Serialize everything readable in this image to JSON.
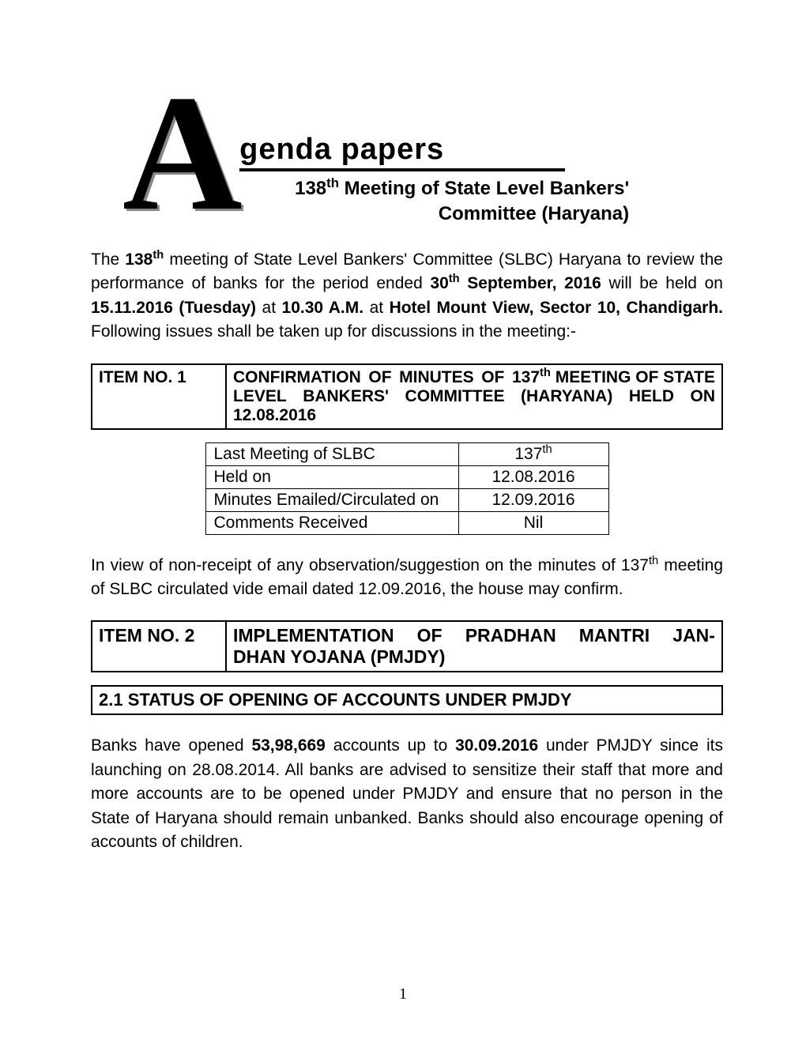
{
  "header": {
    "big_letter": "A",
    "genda": "genda papers",
    "subtitle_line1": "138",
    "subtitle_sup1": "th",
    "subtitle_line1b": " Meeting of State Level Bankers'",
    "subtitle_line2": "Committee (Haryana)"
  },
  "intro": {
    "p1a": "The ",
    "p1b": "138",
    "p1sup": "th",
    "p1c": " meeting of State Level Bankers' Committee (SLBC) Haryana to review the performance of banks for the period ended ",
    "p1d": "30",
    "p1sup2": "th",
    "p1e": " September, 2016",
    "p1f": " will be held on ",
    "p1g": "15.11.2016 (Tuesday)",
    "p1h": " at ",
    "p1i": "10.30 A.M.",
    "p1j": " at ",
    "p1k": "Hotel Mount View, Sector 10, Chandigarh.",
    "p1l": "  Following issues shall be taken up for discussions in the meeting:-"
  },
  "item1": {
    "label": "ITEM NO. 1",
    "desc_a": "CONFIRMATION OF MINUTES OF 137",
    "desc_sup": "th",
    "desc_b": " MEETING OF STATE LEVEL BANKERS' COMMITTEE (HARYANA) HELD ON 12.08.2016",
    "line1_words": [
      "CONFIRMATION",
      "OF",
      "MINUTES",
      "OF",
      "137"
    ],
    "line1_tail_sup": "th",
    "line1_tail": " MEETING OF STATE",
    "line2_words": [
      "LEVEL",
      "BANKERS'",
      "COMMITTEE",
      "(HARYANA)",
      "HELD",
      "ON"
    ],
    "line3": "12.08.2016"
  },
  "meta": {
    "rows": [
      {
        "k": "Last Meeting of SLBC",
        "v_a": "137",
        "v_sup": "th"
      },
      {
        "k": "Held on",
        "v": "12.08.2016"
      },
      {
        "k": "Minutes Emailed/Circulated on",
        "v": "12.09.2016"
      },
      {
        "k": "Comments Received",
        "v": "Nil"
      }
    ]
  },
  "confirm_para_a": "In view of non-receipt of any observation/suggestion on the minutes of 137",
  "confirm_para_sup": "th",
  "confirm_para_b": " meeting of SLBC circulated vide email dated 12.09.2016, the house may confirm.",
  "item2": {
    "label": "ITEM NO. 2",
    "line1_words": [
      "IMPLEMENTATION",
      "OF",
      "PRADHAN",
      "MANTRI",
      "JAN-"
    ],
    "line2": "DHAN YOJANA (PMJDY)"
  },
  "section21": "2.1 STATUS OF OPENING OF ACCOUNTS UNDER PMJDY",
  "pmjdy_para_a": "Banks have opened ",
  "pmjdy_para_b": "53,98,669",
  "pmjdy_para_c": " accounts up to ",
  "pmjdy_para_d": "30.09.2016",
  "pmjdy_para_e": " under PMJDY since its launching on 28.08.2014. All banks are advised to sensitize their staff that more and more accounts are to be opened under PMJDY and ensure that no person in the State of Haryana should remain unbanked.  Banks should also encourage opening of accounts of children.",
  "page_number": "1"
}
